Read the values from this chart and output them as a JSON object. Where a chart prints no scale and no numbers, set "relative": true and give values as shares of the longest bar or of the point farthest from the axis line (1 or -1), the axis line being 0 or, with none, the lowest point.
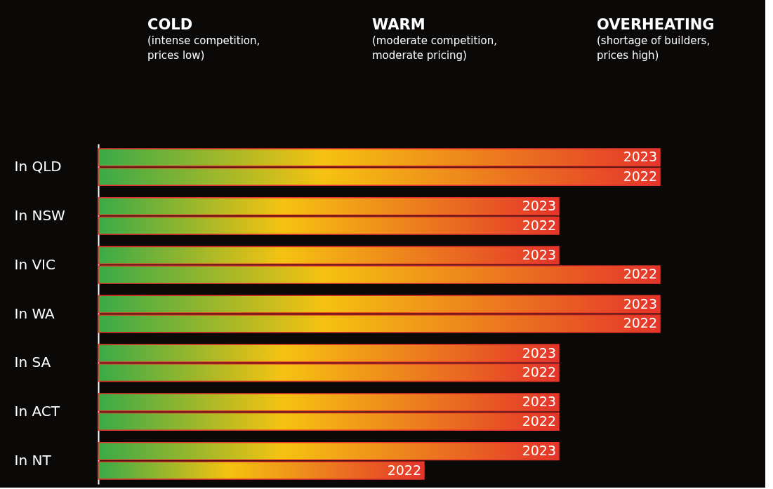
{
  "chart_data": {
    "type": "bar",
    "orientation": "horizontal",
    "relative": true,
    "annotations": [
      "COLD\n(intense competition,\nprices low)",
      "WARM\n(moderate competition,\nmoderate pricing)",
      "OVERHEATING\n(shortage of builders,\nprices high)"
    ],
    "categories": [
      "In QLD",
      "In NSW",
      "In VIC",
      "In WA",
      "In SA",
      "In ACT",
      "In NT"
    ],
    "series": [
      {
        "name": "2023",
        "color": "#e4352b",
        "values": [
          1,
          0.82,
          0.82,
          1,
          0.82,
          0.82,
          0.82
        ]
      },
      {
        "name": "2022",
        "color": "#e4352b",
        "values": [
          1,
          0.82,
          1,
          1,
          0.82,
          0.82,
          0.58
        ]
      }
    ]
  }
}
